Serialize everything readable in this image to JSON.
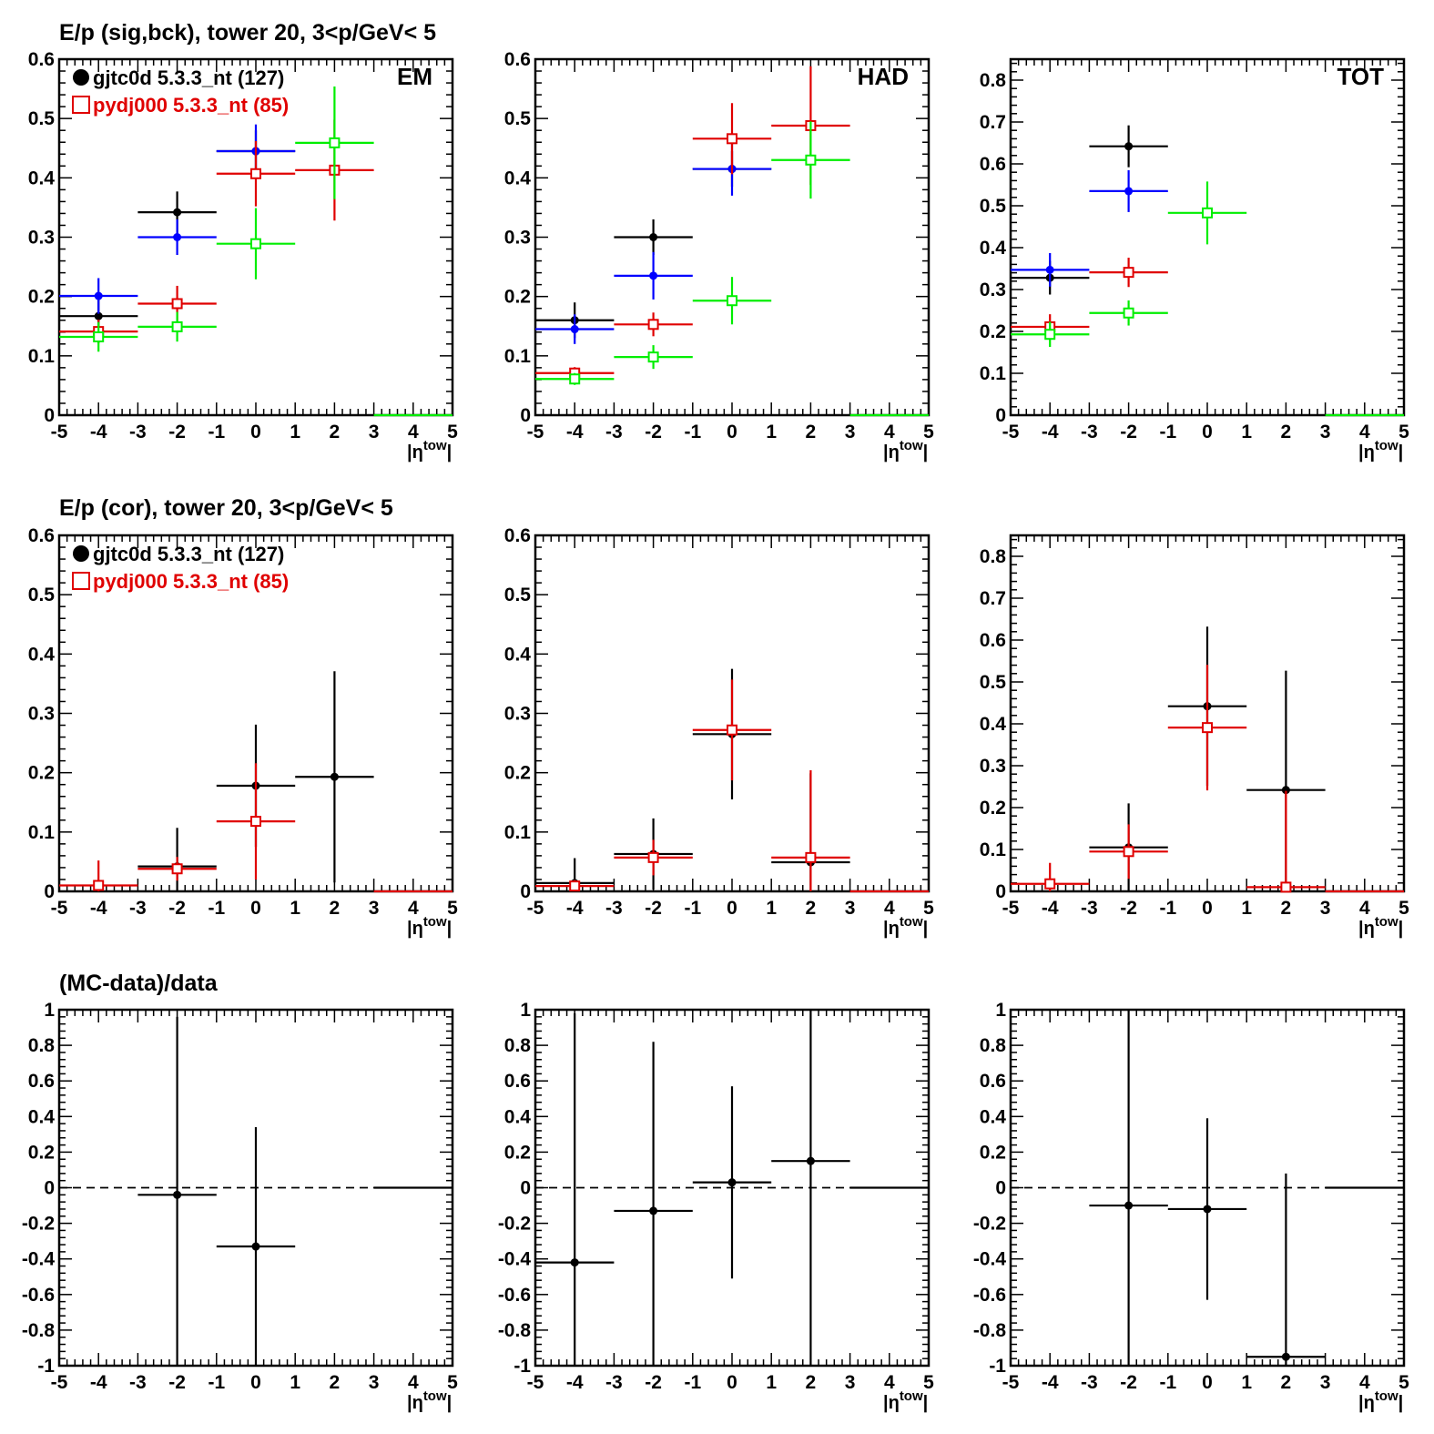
{
  "colors": {
    "data": "#000000",
    "mc": "#e00000",
    "sig": "#0000ff",
    "bck": "#00ee00"
  },
  "rows": [
    {
      "title": "E/p (sig,bck), tower 20,  3<p/GeV< 5"
    },
    {
      "title": "E/p (cor), tower 20,  3<p/GeV< 5"
    },
    {
      "title": "(MC-data)/data"
    }
  ],
  "legend": {
    "data_label": "gjtc0d 5.3.3_nt (127)",
    "mc_label": "pydj000 5.3.3_nt (85)"
  },
  "xlabel": {
    "main": "|η",
    "sup": "tow",
    "close": "|"
  },
  "chart_data": [
    {
      "type": "scatter",
      "row": 0,
      "column": 0,
      "tag": "EM",
      "xlim": [
        -5,
        5
      ],
      "ylim": [
        0,
        0.6
      ],
      "xticks": [
        -5,
        -4,
        -3,
        -2,
        -1,
        0,
        1,
        2,
        3,
        4,
        5
      ],
      "yticks": [
        0,
        0.1,
        0.2,
        0.3,
        0.4,
        0.5,
        0.6
      ],
      "series": [
        {
          "name": "gjtc0d 5.3.3_nt (127)",
          "color": "#000000",
          "marker": "dot",
          "points": [
            {
              "x": -4,
              "y": 0.167,
              "err": 0.03
            },
            {
              "x": -2,
              "y": 0.342,
              "err": 0.035
            },
            {
              "x": 0,
              "y": 0.445,
              "err": 0.035
            }
          ]
        },
        {
          "color": "#0000ff",
          "marker": "dot",
          "points": [
            {
              "x": -4,
              "y": 0.201,
              "err": 0.03
            },
            {
              "x": -2,
              "y": 0.3,
              "err": 0.03
            },
            {
              "x": 0,
              "y": 0.445,
              "err": 0.045
            }
          ]
        },
        {
          "name": "pydj000 5.3.3_nt (85)",
          "color": "#e00000",
          "marker": "square",
          "points": [
            {
              "x": -4,
              "y": 0.141,
              "err": 0.02
            },
            {
              "x": -2,
              "y": 0.188,
              "err": 0.03
            },
            {
              "x": 0,
              "y": 0.407,
              "err": 0.055
            },
            {
              "x": 2,
              "y": 0.413,
              "err": 0.085
            }
          ]
        },
        {
          "color": "#00ee00",
          "marker": "square",
          "points": [
            {
              "x": -4,
              "y": 0.132,
              "err": 0.025
            },
            {
              "x": -2,
              "y": 0.149,
              "err": 0.025
            },
            {
              "x": 0,
              "y": 0.289,
              "err": 0.06
            },
            {
              "x": 2,
              "y": 0.459,
              "err": 0.095
            },
            {
              "x": 4,
              "y": 0.0,
              "err": 0
            }
          ]
        }
      ]
    },
    {
      "type": "scatter",
      "row": 0,
      "column": 1,
      "tag": "HAD",
      "xlim": [
        -5,
        5
      ],
      "ylim": [
        0,
        0.6
      ],
      "xticks": [
        -5,
        -4,
        -3,
        -2,
        -1,
        0,
        1,
        2,
        3,
        4,
        5
      ],
      "yticks": [
        0,
        0.1,
        0.2,
        0.3,
        0.4,
        0.5,
        0.6
      ],
      "series": [
        {
          "name": "gjtc0d 5.3.3_nt (127)",
          "color": "#000000",
          "marker": "dot",
          "points": [
            {
              "x": -4,
              "y": 0.16,
              "err": 0.03
            },
            {
              "x": -2,
              "y": 0.3,
              "err": 0.03
            },
            {
              "x": 0,
              "y": 0.415,
              "err": 0.03
            }
          ]
        },
        {
          "color": "#0000ff",
          "marker": "dot",
          "points": [
            {
              "x": -4,
              "y": 0.145,
              "err": 0.025
            },
            {
              "x": -2,
              "y": 0.235,
              "err": 0.04
            },
            {
              "x": 0,
              "y": 0.415,
              "err": 0.045
            }
          ]
        },
        {
          "name": "pydj000 5.3.3_nt (85)",
          "color": "#e00000",
          "marker": "square",
          "points": [
            {
              "x": -4,
              "y": 0.071,
              "err": 0.01
            },
            {
              "x": -2,
              "y": 0.153,
              "err": 0.02
            },
            {
              "x": 0,
              "y": 0.466,
              "err": 0.06
            },
            {
              "x": 2,
              "y": 0.488,
              "err": 0.1
            }
          ]
        },
        {
          "color": "#00ee00",
          "marker": "square",
          "points": [
            {
              "x": -4,
              "y": 0.061,
              "err": 0.01
            },
            {
              "x": -2,
              "y": 0.098,
              "err": 0.02
            },
            {
              "x": 0,
              "y": 0.193,
              "err": 0.04
            },
            {
              "x": 2,
              "y": 0.43,
              "err": 0.065
            },
            {
              "x": 4,
              "y": 0.0,
              "err": 0
            }
          ]
        }
      ]
    },
    {
      "type": "scatter",
      "row": 0,
      "column": 2,
      "tag": "TOT",
      "xlim": [
        -5,
        5
      ],
      "ylim": [
        0,
        0.85
      ],
      "xticks": [
        -5,
        -4,
        -3,
        -2,
        -1,
        0,
        1,
        2,
        3,
        4,
        5
      ],
      "yticks": [
        0,
        0.1,
        0.2,
        0.3,
        0.4,
        0.5,
        0.6,
        0.7,
        0.8
      ],
      "series": [
        {
          "name": "gjtc0d 5.3.3_nt (127)",
          "color": "#000000",
          "marker": "dot",
          "points": [
            {
              "x": -4,
              "y": 0.328,
              "err": 0.04
            },
            {
              "x": -2,
              "y": 0.642,
              "err": 0.05
            }
          ]
        },
        {
          "color": "#0000ff",
          "marker": "dot",
          "points": [
            {
              "x": -4,
              "y": 0.347,
              "err": 0.04
            },
            {
              "x": -2,
              "y": 0.535,
              "err": 0.05
            }
          ]
        },
        {
          "name": "pydj000 5.3.3_nt (85)",
          "color": "#e00000",
          "marker": "square",
          "points": [
            {
              "x": -4,
              "y": 0.211,
              "err": 0.03
            },
            {
              "x": -2,
              "y": 0.341,
              "err": 0.035
            }
          ]
        },
        {
          "color": "#00ee00",
          "marker": "square",
          "points": [
            {
              "x": -4,
              "y": 0.193,
              "err": 0.03
            },
            {
              "x": -2,
              "y": 0.244,
              "err": 0.03
            },
            {
              "x": 0,
              "y": 0.483,
              "err": 0.075
            },
            {
              "x": 4,
              "y": 0.0,
              "err": 0
            }
          ]
        }
      ]
    },
    {
      "type": "scatter",
      "row": 1,
      "column": 0,
      "xlim": [
        -5,
        5
      ],
      "ylim": [
        0,
        0.6
      ],
      "xticks": [
        -5,
        -4,
        -3,
        -2,
        -1,
        0,
        1,
        2,
        3,
        4,
        5
      ],
      "yticks": [
        0,
        0.1,
        0.2,
        0.3,
        0.4,
        0.5,
        0.6
      ],
      "series": [
        {
          "name": "gjtc0d 5.3.3_nt (127)",
          "color": "#000000",
          "marker": "dot",
          "points": [
            {
              "x": -2,
              "y": 0.042,
              "err": 0.065
            },
            {
              "x": 0,
              "y": 0.178,
              "err": 0.103
            },
            {
              "x": 2,
              "y": 0.193,
              "err": 0.178
            }
          ]
        },
        {
          "name": "pydj000 5.3.3_nt (85)",
          "color": "#e00000",
          "marker": "square",
          "points": [
            {
              "x": -4,
              "y": 0.01,
              "err": 0.042
            },
            {
              "x": -2,
              "y": 0.038,
              "err": 0.02
            },
            {
              "x": 0,
              "y": 0.118,
              "err": 0.098
            },
            {
              "x": 4,
              "y": 0.0,
              "err": 0
            }
          ]
        }
      ]
    },
    {
      "type": "scatter",
      "row": 1,
      "column": 1,
      "xlim": [
        -5,
        5
      ],
      "ylim": [
        0,
        0.6
      ],
      "xticks": [
        -5,
        -4,
        -3,
        -2,
        -1,
        0,
        1,
        2,
        3,
        4,
        5
      ],
      "yticks": [
        0,
        0.1,
        0.2,
        0.3,
        0.4,
        0.5,
        0.6
      ],
      "series": [
        {
          "name": "gjtc0d 5.3.3_nt (127)",
          "color": "#000000",
          "marker": "dot",
          "points": [
            {
              "x": -4,
              "y": 0.014,
              "err": 0.042
            },
            {
              "x": -2,
              "y": 0.063,
              "err": 0.06
            },
            {
              "x": 0,
              "y": 0.265,
              "err": 0.11
            },
            {
              "x": 2,
              "y": 0.049,
              "err": 0.15
            }
          ]
        },
        {
          "name": "pydj000 5.3.3_nt (85)",
          "color": "#e00000",
          "marker": "square",
          "points": [
            {
              "x": -4,
              "y": 0.009,
              "err": 0.01
            },
            {
              "x": -2,
              "y": 0.057,
              "err": 0.03
            },
            {
              "x": 0,
              "y": 0.272,
              "err": 0.085
            },
            {
              "x": 2,
              "y": 0.057,
              "err": 0.147
            },
            {
              "x": 4,
              "y": 0.0,
              "err": 0
            }
          ]
        }
      ]
    },
    {
      "type": "scatter",
      "row": 1,
      "column": 2,
      "xlim": [
        -5,
        5
      ],
      "ylim": [
        0,
        0.85
      ],
      "xticks": [
        -5,
        -4,
        -3,
        -2,
        -1,
        0,
        1,
        2,
        3,
        4,
        5
      ],
      "yticks": [
        0,
        0.1,
        0.2,
        0.3,
        0.4,
        0.5,
        0.6,
        0.7,
        0.8
      ],
      "series": [
        {
          "name": "gjtc0d 5.3.3_nt (127)",
          "color": "#000000",
          "marker": "dot",
          "points": [
            {
              "x": -2,
              "y": 0.105,
              "err": 0.105
            },
            {
              "x": 0,
              "y": 0.442,
              "err": 0.19
            },
            {
              "x": 2,
              "y": 0.242,
              "err": 0.285
            }
          ]
        },
        {
          "name": "pydj000 5.3.3_nt (85)",
          "color": "#e00000",
          "marker": "square",
          "points": [
            {
              "x": -4,
              "y": 0.018,
              "err": 0.05
            },
            {
              "x": -2,
              "y": 0.095,
              "err": 0.065
            },
            {
              "x": 0,
              "y": 0.391,
              "err": 0.15
            },
            {
              "x": 2,
              "y": 0.01,
              "err": 0.23
            },
            {
              "x": 4,
              "y": 0.0,
              "err": 0
            }
          ]
        }
      ]
    },
    {
      "type": "scatter",
      "row": 2,
      "column": 0,
      "xlim": [
        -5,
        5
      ],
      "ylim": [
        -1,
        1
      ],
      "xticks": [
        -5,
        -4,
        -3,
        -2,
        -1,
        0,
        1,
        2,
        3,
        4,
        5
      ],
      "yticks": [
        -1,
        -0.8,
        -0.6,
        -0.4,
        -0.2,
        0,
        0.2,
        0.4,
        0.6,
        0.8,
        1
      ],
      "reference_line": 0,
      "series": [
        {
          "color": "#000000",
          "marker": "dot",
          "points": [
            {
              "x": -2,
              "y": -0.04,
              "err": 1.0
            },
            {
              "x": 0,
              "y": -0.33,
              "err": 0.67
            },
            {
              "x": 4,
              "y": 0.0,
              "err": 0
            }
          ]
        }
      ]
    },
    {
      "type": "scatter",
      "row": 2,
      "column": 1,
      "xlim": [
        -5,
        5
      ],
      "ylim": [
        -1,
        1
      ],
      "xticks": [
        -5,
        -4,
        -3,
        -2,
        -1,
        0,
        1,
        2,
        3,
        4,
        5
      ],
      "yticks": [
        -1,
        -0.8,
        -0.6,
        -0.4,
        -0.2,
        0,
        0.2,
        0.4,
        0.6,
        0.8,
        1
      ],
      "reference_line": 0,
      "series": [
        {
          "color": "#000000",
          "marker": "dot",
          "points": [
            {
              "x": -4,
              "y": -0.42,
              "err": 1.4
            },
            {
              "x": -2,
              "y": -0.13,
              "err": 0.95
            },
            {
              "x": 0,
              "y": 0.03,
              "err": 0.54
            },
            {
              "x": 2,
              "y": 0.15,
              "err": 1.2
            },
            {
              "x": 4,
              "y": 0.0,
              "err": 0
            }
          ]
        }
      ]
    },
    {
      "type": "scatter",
      "row": 2,
      "column": 2,
      "xlim": [
        -5,
        5
      ],
      "ylim": [
        -1,
        1
      ],
      "xticks": [
        -5,
        -4,
        -3,
        -2,
        -1,
        0,
        1,
        2,
        3,
        4,
        5
      ],
      "yticks": [
        -1,
        -0.8,
        -0.6,
        -0.4,
        -0.2,
        0,
        0.2,
        0.4,
        0.6,
        0.8,
        1
      ],
      "reference_line": 0,
      "series": [
        {
          "color": "#000000",
          "marker": "dot",
          "points": [
            {
              "x": -2,
              "y": -0.1,
              "err": 1.1
            },
            {
              "x": 0,
              "y": -0.12,
              "err": 0.51
            },
            {
              "x": 2,
              "y": -0.95,
              "err": 1.03
            },
            {
              "x": 4,
              "y": 0.0,
              "err": 0
            }
          ]
        }
      ]
    }
  ]
}
